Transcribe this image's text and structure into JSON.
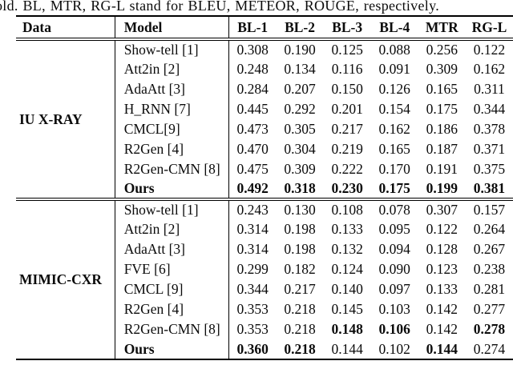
{
  "caption": "old. BL, MTR, RG-L stand for BLEU, METEOR, ROUGE, respectively.",
  "table": {
    "columns": [
      "Data",
      "Model",
      "BL-1",
      "BL-2",
      "BL-3",
      "BL-4",
      "MTR",
      "RG-L"
    ],
    "sections": [
      {
        "data_label": "IU X-RAY",
        "rows": [
          {
            "model": "Show-tell [1]",
            "model_bold": false,
            "values": [
              "0.308",
              "0.190",
              "0.125",
              "0.088",
              "0.256",
              "0.122"
            ],
            "bold": [
              false,
              false,
              false,
              false,
              false,
              false
            ]
          },
          {
            "model": "Att2in [2]",
            "model_bold": false,
            "values": [
              "0.248",
              "0.134",
              "0.116",
              "0.091",
              "0.309",
              "0.162"
            ],
            "bold": [
              false,
              false,
              false,
              false,
              false,
              false
            ]
          },
          {
            "model": "AdaAtt [3]",
            "model_bold": false,
            "values": [
              "0.284",
              "0.207",
              "0.150",
              "0.126",
              "0.165",
              "0.311"
            ],
            "bold": [
              false,
              false,
              false,
              false,
              false,
              false
            ]
          },
          {
            "model": "H_RNN [7]",
            "model_bold": false,
            "values": [
              "0.445",
              "0.292",
              "0.201",
              "0.154",
              "0.175",
              "0.344"
            ],
            "bold": [
              false,
              false,
              false,
              false,
              false,
              false
            ]
          },
          {
            "model": "CMCL[9]",
            "model_bold": false,
            "values": [
              "0.473",
              "0.305",
              "0.217",
              "0.162",
              "0.186",
              "0.378"
            ],
            "bold": [
              false,
              false,
              false,
              false,
              false,
              false
            ]
          },
          {
            "model": "R2Gen [4]",
            "model_bold": false,
            "values": [
              "0.470",
              "0.304",
              "0.219",
              "0.165",
              "0.187",
              "0.371"
            ],
            "bold": [
              false,
              false,
              false,
              false,
              false,
              false
            ]
          },
          {
            "model": "R2Gen-CMN [8]",
            "model_bold": false,
            "values": [
              "0.475",
              "0.309",
              "0.222",
              "0.170",
              "0.191",
              "0.375"
            ],
            "bold": [
              false,
              false,
              false,
              false,
              false,
              false
            ]
          },
          {
            "model": "Ours",
            "model_bold": true,
            "values": [
              "0.492",
              "0.318",
              "0.230",
              "0.175",
              "0.199",
              "0.381"
            ],
            "bold": [
              true,
              true,
              true,
              true,
              true,
              true
            ]
          }
        ]
      },
      {
        "data_label": "MIMIC-CXR",
        "rows": [
          {
            "model": "Show-tell [1]",
            "model_bold": false,
            "values": [
              "0.243",
              "0.130",
              "0.108",
              "0.078",
              "0.307",
              "0.157"
            ],
            "bold": [
              false,
              false,
              false,
              false,
              false,
              false
            ]
          },
          {
            "model": "Att2in [2]",
            "model_bold": false,
            "values": [
              "0.314",
              "0.198",
              "0.133",
              "0.095",
              "0.122",
              "0.264"
            ],
            "bold": [
              false,
              false,
              false,
              false,
              false,
              false
            ]
          },
          {
            "model": "AdaAtt [3]",
            "model_bold": false,
            "values": [
              "0.314",
              "0.198",
              "0.132",
              "0.094",
              "0.128",
              "0.267"
            ],
            "bold": [
              false,
              false,
              false,
              false,
              false,
              false
            ]
          },
          {
            "model": "FVE [6]",
            "model_bold": false,
            "values": [
              "0.299",
              "0.182",
              "0.124",
              "0.090",
              "0.123",
              "0.238"
            ],
            "bold": [
              false,
              false,
              false,
              false,
              false,
              false
            ]
          },
          {
            "model": "CMCL [9]",
            "model_bold": false,
            "values": [
              "0.344",
              "0.217",
              "0.140",
              "0.097",
              "0.133",
              "0.281"
            ],
            "bold": [
              false,
              false,
              false,
              false,
              false,
              false
            ]
          },
          {
            "model": "R2Gen [4]",
            "model_bold": false,
            "values": [
              "0.353",
              "0.218",
              "0.145",
              "0.103",
              "0.142",
              "0.277"
            ],
            "bold": [
              false,
              false,
              false,
              false,
              false,
              false
            ]
          },
          {
            "model": "R2Gen-CMN [8]",
            "model_bold": false,
            "values": [
              "0.353",
              "0.218",
              "0.148",
              "0.106",
              "0.142",
              "0.278"
            ],
            "bold": [
              false,
              false,
              true,
              true,
              false,
              true
            ]
          },
          {
            "model": "Ours",
            "model_bold": true,
            "values": [
              "0.360",
              "0.218",
              "0.144",
              "0.102",
              "0.144",
              "0.274"
            ],
            "bold": [
              true,
              true,
              false,
              false,
              true,
              false
            ]
          }
        ]
      }
    ]
  }
}
